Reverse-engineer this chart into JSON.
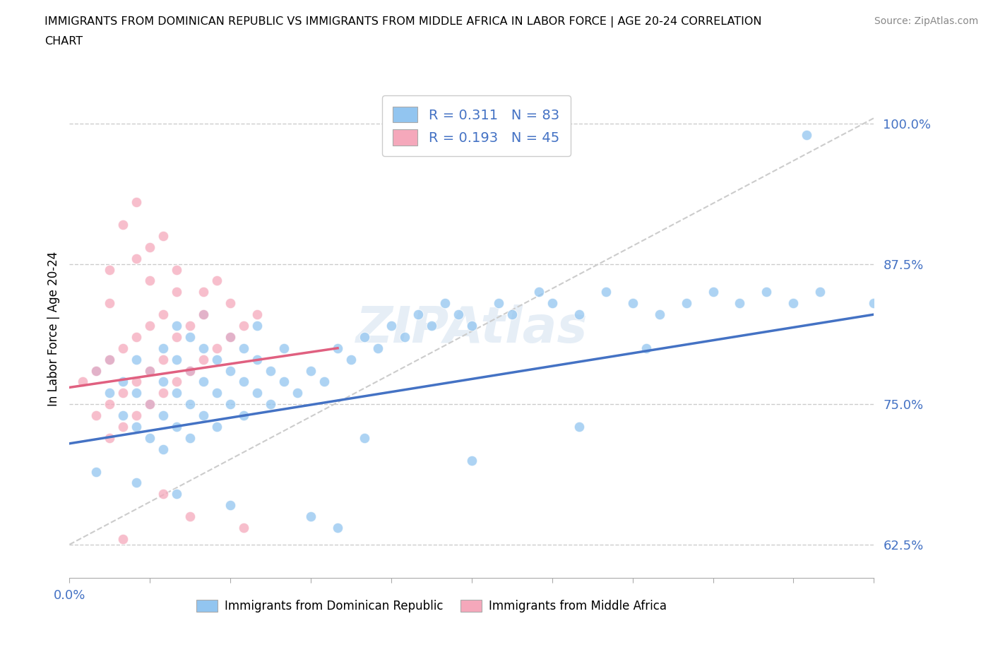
{
  "title_line1": "IMMIGRANTS FROM DOMINICAN REPUBLIC VS IMMIGRANTS FROM MIDDLE AFRICA IN LABOR FORCE | AGE 20-24 CORRELATION",
  "title_line2": "CHART",
  "source_text": "Source: ZipAtlas.com",
  "ylabel": "In Labor Force | Age 20-24",
  "xlim": [
    0.0,
    0.6
  ],
  "ylim": [
    0.595,
    1.04
  ],
  "yticks": [
    0.625,
    0.75,
    0.875,
    1.0
  ],
  "ytick_labels": [
    "62.5%",
    "75.0%",
    "87.5%",
    "100.0%"
  ],
  "xticks": [
    0.0,
    0.06,
    0.12,
    0.18,
    0.24,
    0.3,
    0.36,
    0.42,
    0.48,
    0.54,
    0.6
  ],
  "xtick_labels_show": {
    "0.0": "0.0%"
  },
  "legend_R1": "0.311",
  "legend_N1": "83",
  "legend_R2": "0.193",
  "legend_N2": "45",
  "color_blue": "#92C5F0",
  "color_pink": "#F5A8BB",
  "color_blue_line": "#4472C4",
  "color_pink_line": "#E06080",
  "color_text_axis": "#4472C4",
  "watermark_text": "ZIPAtlas",
  "blue_scatter_x": [
    0.02,
    0.03,
    0.03,
    0.04,
    0.04,
    0.05,
    0.05,
    0.05,
    0.06,
    0.06,
    0.06,
    0.07,
    0.07,
    0.07,
    0.07,
    0.08,
    0.08,
    0.08,
    0.08,
    0.09,
    0.09,
    0.09,
    0.09,
    0.1,
    0.1,
    0.1,
    0.1,
    0.11,
    0.11,
    0.11,
    0.12,
    0.12,
    0.12,
    0.13,
    0.13,
    0.13,
    0.14,
    0.14,
    0.14,
    0.15,
    0.15,
    0.16,
    0.16,
    0.17,
    0.18,
    0.19,
    0.2,
    0.21,
    0.22,
    0.23,
    0.24,
    0.25,
    0.26,
    0.27,
    0.28,
    0.29,
    0.3,
    0.32,
    0.33,
    0.35,
    0.36,
    0.38,
    0.4,
    0.42,
    0.44,
    0.46,
    0.48,
    0.5,
    0.52,
    0.54,
    0.56,
    0.02,
    0.05,
    0.08,
    0.12,
    0.18,
    0.3,
    0.22,
    0.38,
    0.2,
    0.55,
    0.6,
    0.43
  ],
  "blue_scatter_y": [
    0.78,
    0.76,
    0.79,
    0.74,
    0.77,
    0.73,
    0.76,
    0.79,
    0.72,
    0.75,
    0.78,
    0.71,
    0.74,
    0.77,
    0.8,
    0.73,
    0.76,
    0.79,
    0.82,
    0.72,
    0.75,
    0.78,
    0.81,
    0.74,
    0.77,
    0.8,
    0.83,
    0.73,
    0.76,
    0.79,
    0.75,
    0.78,
    0.81,
    0.74,
    0.77,
    0.8,
    0.76,
    0.79,
    0.82,
    0.75,
    0.78,
    0.77,
    0.8,
    0.76,
    0.78,
    0.77,
    0.8,
    0.79,
    0.81,
    0.8,
    0.82,
    0.81,
    0.83,
    0.82,
    0.84,
    0.83,
    0.82,
    0.84,
    0.83,
    0.85,
    0.84,
    0.83,
    0.85,
    0.84,
    0.83,
    0.84,
    0.85,
    0.84,
    0.85,
    0.84,
    0.85,
    0.69,
    0.68,
    0.67,
    0.66,
    0.65,
    0.7,
    0.72,
    0.73,
    0.64,
    0.99,
    0.84,
    0.8
  ],
  "pink_scatter_x": [
    0.01,
    0.02,
    0.02,
    0.03,
    0.03,
    0.03,
    0.04,
    0.04,
    0.04,
    0.05,
    0.05,
    0.05,
    0.06,
    0.06,
    0.06,
    0.07,
    0.07,
    0.07,
    0.08,
    0.08,
    0.09,
    0.09,
    0.1,
    0.1,
    0.11,
    0.12,
    0.13,
    0.14,
    0.04,
    0.05,
    0.06,
    0.03,
    0.07,
    0.05,
    0.06,
    0.08,
    0.03,
    0.08,
    0.1,
    0.11,
    0.12,
    0.07,
    0.09,
    0.04,
    0.13
  ],
  "pink_scatter_y": [
    0.77,
    0.74,
    0.78,
    0.72,
    0.75,
    0.79,
    0.73,
    0.76,
    0.8,
    0.74,
    0.77,
    0.81,
    0.75,
    0.78,
    0.82,
    0.76,
    0.79,
    0.83,
    0.77,
    0.81,
    0.78,
    0.82,
    0.79,
    0.83,
    0.8,
    0.81,
    0.82,
    0.83,
    0.91,
    0.93,
    0.89,
    0.87,
    0.9,
    0.88,
    0.86,
    0.85,
    0.84,
    0.87,
    0.85,
    0.86,
    0.84,
    0.67,
    0.65,
    0.63,
    0.64
  ],
  "blue_line_x0": 0.0,
  "blue_line_x1": 0.6,
  "blue_line_y0": 0.715,
  "blue_line_y1": 0.83,
  "pink_line_x0": 0.0,
  "pink_line_x1": 0.2,
  "pink_line_y0": 0.765,
  "pink_line_y1": 0.8,
  "gray_line_x0": 0.0,
  "gray_line_x1": 0.6,
  "gray_line_y0": 0.625,
  "gray_line_y1": 1.005
}
